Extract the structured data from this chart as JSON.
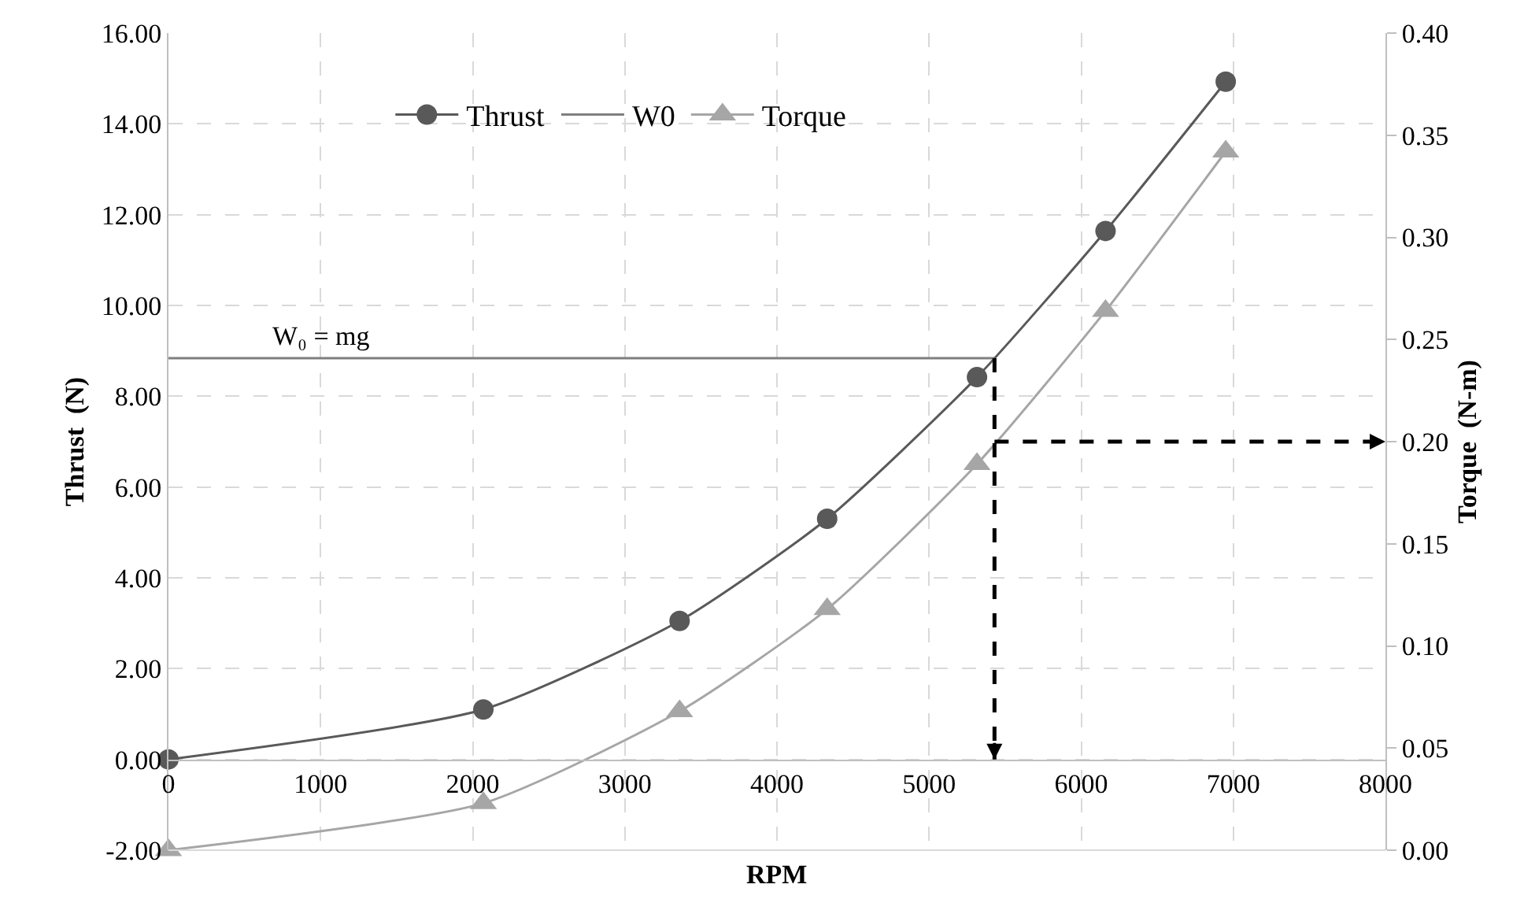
{
  "chart_data": {
    "type": "line",
    "xlabel": "RPM",
    "ylabel": "Thrust  (N)",
    "y2label": "Torque  (N-m)",
    "xlim": [
      0,
      8000
    ],
    "xticks": [
      0,
      1000,
      2000,
      3000,
      4000,
      5000,
      6000,
      7000,
      8000
    ],
    "ylim": [
      -2,
      16
    ],
    "yticks": [
      {
        "value": -2,
        "label": "-2.00"
      },
      {
        "value": 0,
        "label": "0.00"
      },
      {
        "value": 2,
        "label": "2.00"
      },
      {
        "value": 4,
        "label": "4.00"
      },
      {
        "value": 6,
        "label": "6.00"
      },
      {
        "value": 8,
        "label": "8.00"
      },
      {
        "value": 10,
        "label": "10.00"
      },
      {
        "value": 12,
        "label": "12.00"
      },
      {
        "value": 14,
        "label": "14.00"
      },
      {
        "value": 16,
        "label": "16.00"
      }
    ],
    "y2lim": [
      0,
      0.4
    ],
    "y2ticks": [
      {
        "value": 0,
        "label": "0.00"
      },
      {
        "value": 0.05,
        "label": "0.05"
      },
      {
        "value": 0.1,
        "label": "0.10"
      },
      {
        "value": 0.15,
        "label": "0.15"
      },
      {
        "value": 0.2,
        "label": "0.20"
      },
      {
        "value": 0.25,
        "label": "0.25"
      },
      {
        "value": 0.3,
        "label": "0.30"
      },
      {
        "value": 0.35,
        "label": "0.35"
      },
      {
        "value": 0.4,
        "label": "0.40"
      }
    ],
    "series": [
      {
        "name": "Thrust",
        "color": "#595959",
        "marker": "circle",
        "x": [
          0,
          2070,
          3360,
          4330,
          5315,
          6160,
          6950
        ],
        "values": [
          0,
          1.1,
          3.05,
          5.3,
          8.42,
          11.64,
          14.93
        ]
      },
      {
        "name": "W0",
        "color": "#7f7f7f",
        "marker": "none",
        "x": [
          0,
          5430
        ],
        "values": [
          8.84,
          8.84
        ]
      },
      {
        "name": "Torque",
        "color": "#a6a6a6",
        "marker": "triangle",
        "axis": "y2",
        "x": [
          0,
          2070,
          3360,
          4330,
          5315,
          6160,
          6950
        ],
        "values": [
          0,
          0.023,
          0.068,
          0.118,
          0.189,
          0.264,
          0.342
        ]
      }
    ],
    "ref_lines": [
      {
        "axis": "x",
        "value": 5430,
        "color": "#000000",
        "line_style": "dashed"
      },
      {
        "axis": "y2",
        "value": 0.2,
        "color": "#000000",
        "line_style": "dashed"
      }
    ],
    "annotations": [
      {
        "text": "W₀ = mg",
        "x": 1000,
        "y": 8.84
      }
    ],
    "grid": true,
    "legend": "top"
  }
}
